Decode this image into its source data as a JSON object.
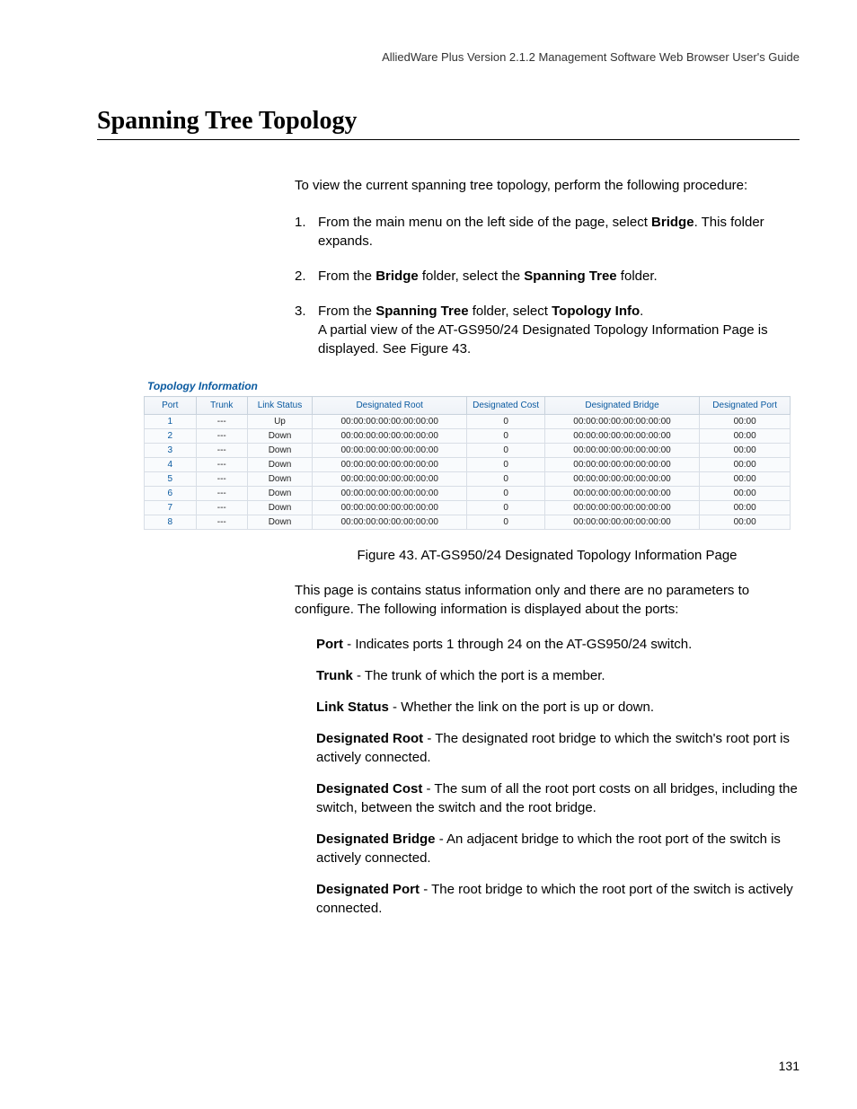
{
  "header": "AlliedWare Plus Version 2.1.2 Management Software Web Browser User's Guide",
  "title": "Spanning Tree Topology",
  "intro": "To view the current spanning tree topology, perform the following procedure:",
  "steps": [
    {
      "num": "1.",
      "before": "From the main menu on the left side of the page, select ",
      "bold": "Bridge",
      "after": ". This folder expands."
    },
    {
      "num": "2.",
      "before": "From the ",
      "bold": "Bridge",
      "mid": " folder, select the ",
      "bold2": "Spanning Tree",
      "after": " folder."
    },
    {
      "num": "3.",
      "before": "From the ",
      "bold": "Spanning Tree",
      "mid": " folder, select ",
      "bold2": "Topology Info",
      "after": ".",
      "extra": "A partial view of the AT-GS950/24 Designated Topology Information Page is displayed. See Figure 43."
    }
  ],
  "figure": {
    "title": "Topology Information",
    "columns": [
      "Port",
      "Trunk",
      "Link Status",
      "Designated Root",
      "Designated Cost",
      "Designated Bridge",
      "Designated Port"
    ],
    "col_widths": [
      "8%",
      "8%",
      "10%",
      "24%",
      "12%",
      "24%",
      "14%"
    ],
    "rows": [
      [
        "1",
        "---",
        "Up",
        "00:00:00:00:00:00:00:00",
        "0",
        "00:00:00:00:00:00:00:00",
        "00:00"
      ],
      [
        "2",
        "---",
        "Down",
        "00:00:00:00:00:00:00:00",
        "0",
        "00:00:00:00:00:00:00:00",
        "00:00"
      ],
      [
        "3",
        "---",
        "Down",
        "00:00:00:00:00:00:00:00",
        "0",
        "00:00:00:00:00:00:00:00",
        "00:00"
      ],
      [
        "4",
        "---",
        "Down",
        "00:00:00:00:00:00:00:00",
        "0",
        "00:00:00:00:00:00:00:00",
        "00:00"
      ],
      [
        "5",
        "---",
        "Down",
        "00:00:00:00:00:00:00:00",
        "0",
        "00:00:00:00:00:00:00:00",
        "00:00"
      ],
      [
        "6",
        "---",
        "Down",
        "00:00:00:00:00:00:00:00",
        "0",
        "00:00:00:00:00:00:00:00",
        "00:00"
      ],
      [
        "7",
        "---",
        "Down",
        "00:00:00:00:00:00:00:00",
        "0",
        "00:00:00:00:00:00:00:00",
        "00:00"
      ],
      [
        "8",
        "---",
        "Down",
        "00:00:00:00:00:00:00:00",
        "0",
        "00:00:00:00:00:00:00:00",
        "00:00"
      ]
    ],
    "caption": "Figure 43. AT-GS950/24 Designated Topology Information Page"
  },
  "post_para": "This page is contains status information only and there are no parameters to configure. The following information is displayed about the ports:",
  "definitions": [
    {
      "term": "Port",
      "desc": " - Indicates ports 1 through 24 on the AT-GS950/24 switch."
    },
    {
      "term": "Trunk",
      "desc": " - The trunk of which the port is a member."
    },
    {
      "term": "Link Status",
      "desc": " - Whether the link on the port is up or down."
    },
    {
      "term": "Designated Root",
      "desc": " - The designated root bridge to which the switch's root port is actively connected."
    },
    {
      "term": "Designated Cost",
      "desc": " - The sum of all the root port costs on all bridges, including the switch, between the switch and the root bridge."
    },
    {
      "term": "Designated Bridge",
      "desc": " - An adjacent bridge to which the root port of the switch is actively connected."
    },
    {
      "term": "Designated Port",
      "desc": " - The root bridge to which the root port of the switch is actively connected."
    }
  ],
  "page_number": "131",
  "colors": {
    "link_blue": "#0a5aa0",
    "border_gray": "#c8d2dc",
    "cell_border": "#d8dee6"
  }
}
